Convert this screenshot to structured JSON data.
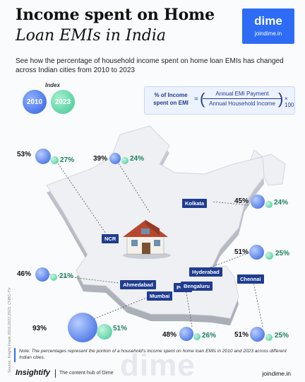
{
  "header": {
    "title_line1": "Income spent on Home",
    "title_line2": "Loan EMIs in India",
    "subtitle": "See how the percentage of household income spent on home loan EMIs has changed across Indian cities from 2010 to 2023"
  },
  "brand": {
    "name": "dime",
    "url": "joindime.in",
    "color": "#2e6cf6"
  },
  "index": {
    "label": "Index",
    "year_a": "2010",
    "year_b": "2023"
  },
  "formula": {
    "left": "% of Income spent on EMI",
    "equals": "=",
    "numerator": "Annual EMI Payment",
    "denominator": "Annual Household Income",
    "multiplier": "× 100"
  },
  "cities": [
    {
      "name": "NCR",
      "y2010": "53%",
      "y2023": "27%"
    },
    {
      "name": "Pune",
      "y2010": "39%",
      "y2023": "24%"
    },
    {
      "name": "Kolkata",
      "y2010": "45%",
      "y2023": "24%"
    },
    {
      "name": "Hyderabad",
      "y2010": "51%",
      "y2023": "25%"
    },
    {
      "name": "Ahmedabad",
      "y2010": "46%",
      "y2023": "21%"
    },
    {
      "name": "Mumbai",
      "y2010": "93%",
      "y2023": "51%"
    },
    {
      "name": "Bengaluru",
      "y2010": "48%",
      "y2023": "26%"
    },
    {
      "name": "Chennai",
      "y2010": "51%",
      "y2023": "25%"
    }
  ],
  "source": "Source: Knight Frank 2010,2022,2023, CNBC-TV",
  "note": "Note: The percentages represent the portion of a household's income spent on home loan EMIs in 2010 and 2023 across different Indian cities.",
  "footer": {
    "logo": "Insightify",
    "tagline": "The content hub of Dime",
    "url": "joindime.in",
    "watermark": "dime"
  },
  "colors": {
    "series_2010": "#2f5fe0",
    "series_2023": "#3ec792",
    "label_bg": "#1f3c8f"
  }
}
